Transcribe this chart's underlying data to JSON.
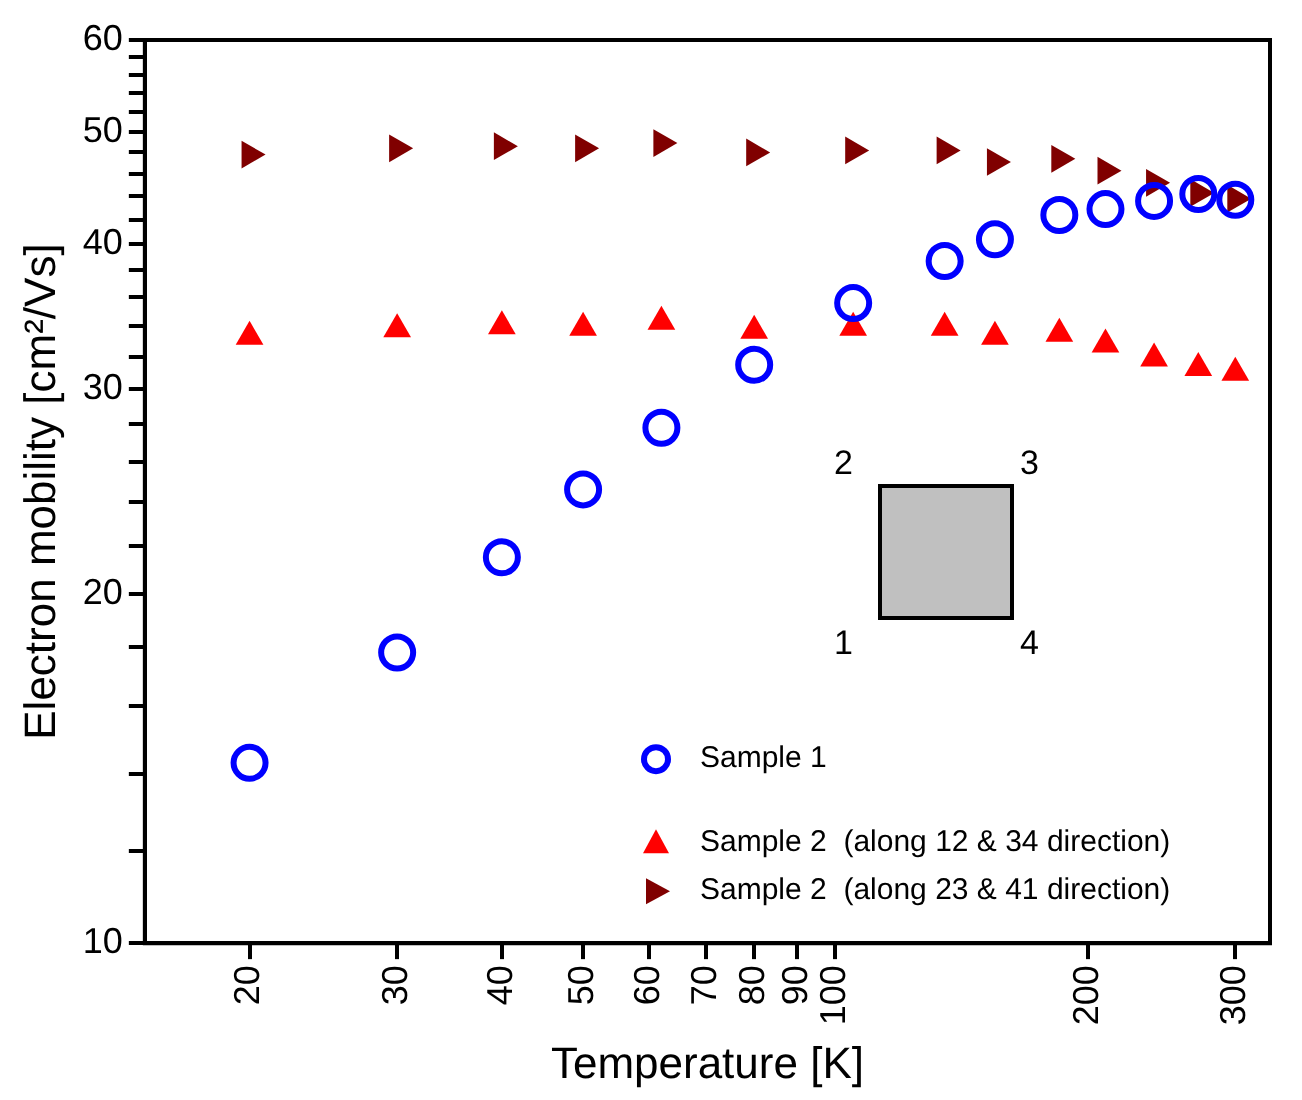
{
  "chart_data": {
    "type": "scatter",
    "xlabel": "Temperature [K]",
    "ylabel": "Electron mobility [cm²/Vs]",
    "log": "xy",
    "grid": false,
    "legend": "bottom right",
    "x": [
      20,
      30,
      40,
      50,
      62,
      80,
      105,
      135,
      155,
      185,
      210,
      240,
      271,
      300
    ],
    "xlim": [
      15,
      330
    ],
    "xticks": [
      20,
      30,
      40,
      50,
      60,
      70,
      80,
      90,
      100,
      200,
      300
    ],
    "ylim": [
      10,
      60
    ],
    "yticks": [
      10,
      {
        "value": 12,
        "label": null
      },
      {
        "value": 14,
        "label": null
      },
      {
        "value": 16,
        "label": null
      },
      {
        "value": 18,
        "label": null
      },
      20,
      {
        "value": 22,
        "label": null
      },
      {
        "value": 24,
        "label": null
      },
      {
        "value": 26,
        "label": null
      },
      {
        "value": 28,
        "label": null
      },
      30,
      {
        "value": 32,
        "label": null
      },
      {
        "value": 34,
        "label": null
      },
      {
        "value": 36,
        "label": null
      },
      {
        "value": 38,
        "label": null
      },
      40,
      {
        "value": 42,
        "label": null
      },
      {
        "value": 44,
        "label": null
      },
      {
        "value": 46,
        "label": null
      },
      {
        "value": 48,
        "label": null
      },
      50,
      {
        "value": 52,
        "label": null
      },
      {
        "value": 54,
        "label": null
      },
      {
        "value": 56,
        "label": null
      },
      {
        "value": 58,
        "label": null
      },
      60
    ],
    "series": [
      {
        "name": "Sample 1",
        "color": "#0000ff",
        "marker": "circle",
        "values": [
          14.3,
          17.8,
          21.5,
          24.6,
          27.8,
          31.5,
          35.6,
          38.7,
          40.4,
          42.4,
          42.9,
          43.6,
          44.2,
          43.7
        ]
      },
      {
        "name": "Sample 2  (along 12 & 34 direction)",
        "color": "#ff0000",
        "marker": "triangle",
        "values": [
          33.3,
          33.8,
          34.0,
          33.9,
          34.3,
          33.7,
          33.9,
          33.9,
          33.3,
          33.5,
          32.8,
          31.9,
          31.3,
          31.0
        ]
      },
      {
        "name": "Sample 2  (along 23 & 41 direction)",
        "color": "#800000",
        "marker": "triangle",
        "values": [
          47.8,
          48.4,
          48.6,
          48.4,
          48.9,
          48.0,
          48.2,
          48.2,
          47.1,
          47.4,
          46.3,
          45.2,
          44.3,
          43.8
        ]
      }
    ],
    "annotations": [
      "1",
      "2",
      "3",
      "4"
    ]
  }
}
